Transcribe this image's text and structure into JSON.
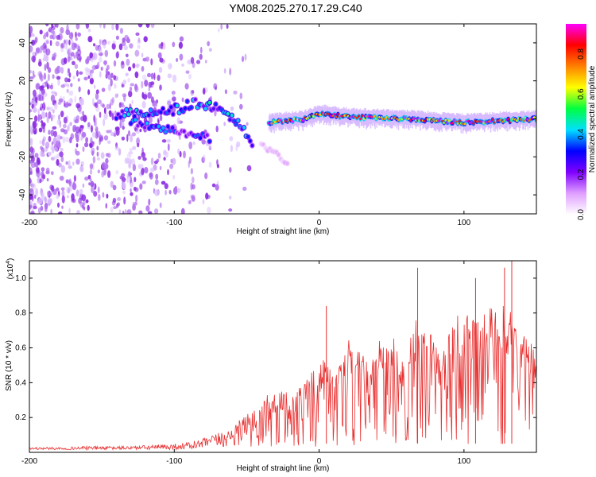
{
  "title": "YM08.2025.270.17.29.C40",
  "chart_data": [
    {
      "type": "heatmap",
      "xlabel": "Height of straight line (km)",
      "ylabel": "Frequency (Hz)",
      "xlim": [
        -200,
        150
      ],
      "ylim": [
        -50,
        50
      ],
      "xticks": [
        -200,
        -100,
        0,
        100
      ],
      "yticks": [
        -40,
        -20,
        0,
        20,
        40
      ],
      "colorbar": {
        "label": "Normalized spectral amplitude",
        "range": [
          0,
          0.95
        ],
        "ticks": [
          0.0,
          0.2,
          0.4,
          0.6,
          0.8
        ],
        "colors": [
          "#ffffff",
          "#e0a0ff",
          "#8000ff",
          "#0000ff",
          "#00e0ff",
          "#00ff40",
          "#ffff00",
          "#ff8000",
          "#ff0000",
          "#ff00ff"
        ]
      },
      "features": [
        {
          "name": "scattered noise",
          "x_range": [
            -200,
            -90
          ],
          "freq_range": [
            -50,
            50
          ],
          "amplitude": 0.05
        },
        {
          "name": "rising branch",
          "x": [
            -140,
            -120,
            -100,
            -85,
            -70,
            -55,
            -45
          ],
          "freq": [
            2,
            3,
            5,
            8,
            6,
            -2,
            -14
          ],
          "amplitude": 0.35
        },
        {
          "name": "lower branch",
          "x": [
            -130,
            -115,
            -100,
            -85,
            -75
          ],
          "freq": [
            -2,
            -4,
            -6,
            -8,
            -10
          ],
          "amplitude": 0.3
        },
        {
          "name": "steady ridge",
          "x": [
            -35,
            -10,
            0,
            20,
            60,
            100,
            150
          ],
          "freq": [
            -2,
            0,
            3,
            1,
            0,
            -2,
            0
          ],
          "amplitude": 0.9
        },
        {
          "name": "trailing tail",
          "x": [
            -40,
            -30,
            -22
          ],
          "freq": [
            -14,
            -18,
            -24
          ],
          "amplitude": 0.08
        }
      ]
    },
    {
      "type": "line",
      "xlabel": "Height of straight line (km)",
      "ylabel": "SNR (10 * v/v)",
      "y_scale_note": "(x10",
      "y_scale_exp": "4",
      "xlim": [
        -200,
        150
      ],
      "ylim": [
        0,
        1.1
      ],
      "xticks": [
        -200,
        -100,
        0,
        100
      ],
      "yticks": [
        0.2,
        0.4,
        0.6,
        0.8,
        1.0
      ],
      "color": "#e83030",
      "x": [
        -200,
        -180,
        -160,
        -140,
        -120,
        -100,
        -90,
        -80,
        -70,
        -60,
        -50,
        -40,
        -35,
        -30,
        -20,
        -10,
        0,
        5,
        10,
        15,
        20,
        25,
        30,
        35,
        40,
        45,
        50,
        55,
        60,
        65,
        70,
        75,
        80,
        85,
        90,
        95,
        100,
        105,
        110,
        115,
        120,
        125,
        130,
        135,
        140,
        145,
        150
      ],
      "y": [
        0.03,
        0.03,
        0.035,
        0.035,
        0.04,
        0.05,
        0.06,
        0.08,
        0.11,
        0.15,
        0.22,
        0.3,
        0.34,
        0.35,
        0.38,
        0.4,
        0.52,
        0.55,
        0.5,
        0.58,
        0.65,
        0.62,
        0.55,
        0.6,
        0.62,
        0.68,
        0.7,
        0.55,
        0.62,
        0.75,
        0.8,
        0.72,
        0.7,
        0.78,
        0.73,
        0.78,
        0.82,
        0.76,
        0.78,
        0.8,
        0.85,
        0.82,
        0.88,
        0.75,
        0.68,
        0.72,
        0.5
      ],
      "peaks": [
        {
          "x": 5,
          "y": 0.84
        },
        {
          "x": 68,
          "y": 1.06
        },
        {
          "x": 108,
          "y": 1.0
        },
        {
          "x": 128,
          "y": 1.06
        },
        {
          "x": 133,
          "y": 1.1
        }
      ]
    }
  ]
}
